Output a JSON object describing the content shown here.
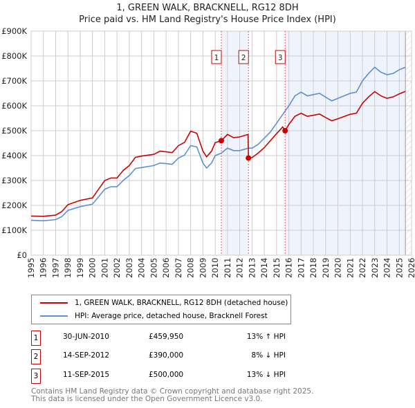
{
  "title": "1, GREEN WALK, BRACKNELL, RG12 8DH",
  "subtitle": "Price paid vs. HM Land Registry's House Price Index (HPI)",
  "chart_data": {
    "type": "line",
    "ylim": [
      0,
      900000
    ],
    "xlim": [
      1995,
      2026
    ],
    "yticks": [
      {
        "v": 0,
        "label": "£0"
      },
      {
        "v": 100000,
        "label": "£100K"
      },
      {
        "v": 200000,
        "label": "£200K"
      },
      {
        "v": 300000,
        "label": "£300K"
      },
      {
        "v": 400000,
        "label": "£400K"
      },
      {
        "v": 500000,
        "label": "£500K"
      },
      {
        "v": 600000,
        "label": "£600K"
      },
      {
        "v": 700000,
        "label": "£700K"
      },
      {
        "v": 800000,
        "label": "£800K"
      },
      {
        "v": 900000,
        "label": "£900K"
      }
    ],
    "xticks": [
      "1995",
      "1996",
      "1997",
      "1998",
      "1999",
      "2000",
      "2001",
      "2002",
      "2003",
      "2004",
      "2005",
      "2006",
      "2007",
      "2008",
      "2009",
      "2010",
      "2011",
      "2012",
      "2013",
      "2014",
      "2015",
      "2016",
      "2017",
      "2018",
      "2019",
      "2020",
      "2021",
      "2022",
      "2023",
      "2024",
      "2025",
      "2026"
    ],
    "series": [
      {
        "name": "1, GREEN WALK, BRACKNELL, RG12 8DH (detached house)",
        "color": "#cc0000",
        "x": [
          1995,
          1996,
          1997,
          1997.5,
          1998,
          1999,
          2000,
          2000.5,
          2001,
          2001.5,
          2002,
          2002.5,
          2003,
          2003.5,
          2004,
          2005,
          2005.5,
          2006,
          2006.5,
          2007,
          2007.5,
          2008,
          2008.5,
          2009,
          2009.3,
          2009.7,
          2010,
          2010.5,
          2011,
          2011.5,
          2012,
          2012.68,
          2012.71,
          2013,
          2013.5,
          2014,
          2014.5,
          2015,
          2015.5,
          2015.7,
          2016,
          2016.5,
          2017,
          2017.5,
          2018,
          2018.5,
          2019,
          2019.5,
          2020,
          2020.5,
          2021,
          2021.5,
          2022,
          2022.5,
          2023,
          2023.5,
          2024,
          2024.5,
          2025,
          2025.5
        ],
        "y": [
          157000,
          156000,
          161000,
          175000,
          203000,
          220000,
          230000,
          265000,
          300000,
          310000,
          310000,
          340000,
          360000,
          393000,
          398000,
          405000,
          418000,
          415000,
          412000,
          440000,
          453000,
          498000,
          490000,
          418000,
          395000,
          418000,
          452000,
          460000,
          485000,
          472000,
          475000,
          485000,
          390000,
          392000,
          410000,
          432000,
          460000,
          488000,
          515000,
          500000,
          525000,
          558000,
          570000,
          558000,
          562000,
          567000,
          553000,
          540000,
          548000,
          557000,
          566000,
          570000,
          610000,
          636000,
          657000,
          640000,
          630000,
          636000,
          648000,
          658000
        ]
      },
      {
        "name": "HPI: Average price, detached house, Bracknell Forest",
        "color": "#5b8fd4",
        "x": [
          1995,
          1996,
          1997,
          1997.5,
          1998,
          1999,
          2000,
          2000.5,
          2001,
          2001.5,
          2002,
          2002.5,
          2003,
          2003.5,
          2004,
          2005,
          2005.5,
          2006,
          2006.5,
          2007,
          2007.5,
          2008,
          2008.5,
          2009,
          2009.3,
          2009.7,
          2010,
          2010.5,
          2011,
          2011.5,
          2012,
          2012.7,
          2013,
          2013.5,
          2014,
          2014.5,
          2015,
          2015.5,
          2016,
          2016.5,
          2017,
          2017.5,
          2018,
          2018.5,
          2019,
          2019.5,
          2020,
          2020.5,
          2021,
          2021.5,
          2022,
          2022.5,
          2023,
          2023.5,
          2024,
          2024.5,
          2025,
          2025.5
        ],
        "y": [
          140000,
          138000,
          143000,
          155000,
          180000,
          195000,
          205000,
          235000,
          265000,
          275000,
          275000,
          300000,
          320000,
          348000,
          352000,
          360000,
          370000,
          368000,
          365000,
          390000,
          402000,
          440000,
          435000,
          370000,
          350000,
          370000,
          400000,
          410000,
          430000,
          420000,
          420000,
          430000,
          430000,
          445000,
          470000,
          495000,
          530000,
          565000,
          600000,
          640000,
          655000,
          640000,
          645000,
          650000,
          635000,
          620000,
          630000,
          640000,
          650000,
          655000,
          700000,
          730000,
          755000,
          735000,
          725000,
          730000,
          745000,
          755000
        ]
      }
    ],
    "sales": [
      {
        "n": "1",
        "x": 2010.5,
        "date": "30-JUN-2010",
        "price": 459950,
        "price_label": "£459,950",
        "hpi": "13% ↑ HPI"
      },
      {
        "n": "2",
        "x": 2012.71,
        "date": "14-SEP-2012",
        "price": 390000,
        "price_label": "£390,000",
        "hpi": "8% ↓ HPI"
      },
      {
        "n": "3",
        "x": 2015.7,
        "date": "11-SEP-2015",
        "price": 500000,
        "price_label": "£500,000",
        "hpi": "13% ↓ HPI"
      }
    ],
    "forecast_start": 2025.5,
    "grid": true
  },
  "footer": [
    "Contains HM Land Registry data © Crown copyright and database right 2025.",
    "This data is licensed under the Open Government Licence v3.0."
  ]
}
